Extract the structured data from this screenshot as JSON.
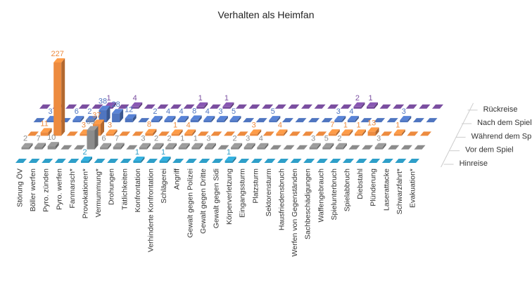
{
  "chart_data": {
    "type": "bar",
    "subtype": "3d-column",
    "title": "Verhalten als Heimfan",
    "categories": [
      "Störung ÖV",
      "Böller werfen",
      "Pyro. zünden",
      "Pyro. werfen",
      "Fanmarsch*",
      "Provokationen*",
      "Vermummung*",
      "Drohungen",
      "Tätlichkeiten",
      "Konfrontation",
      "Verhinderte Konfrontation",
      "Schlägerei",
      "Angriff",
      "Gewalt gegen Polizei",
      "Gewalt gegen Dritte",
      "Gewalt gegen Sidi",
      "Körperverletzung",
      "Eingangssturm",
      "Platzsturm",
      "Sektorensturm",
      "Hausfriedensbruch",
      "Werfen von Gegenständen",
      "Sachbeschädigungen",
      "Waffengebrauch",
      "Spielunterbruch",
      "Spielabbruch",
      "Diebstahl",
      "Plünderung",
      "Laserattacke",
      "Schwarzfahrt*",
      "Evakuation*"
    ],
    "series": [
      {
        "name": "Hinreise",
        "color": "#2e9fc9",
        "values": [
          0,
          0,
          0,
          0,
          0,
          2,
          0,
          0,
          0,
          1,
          0,
          1,
          0,
          0,
          0,
          0,
          1,
          0,
          0,
          0,
          0,
          0,
          0,
          0,
          0,
          0,
          0,
          0,
          0,
          0,
          0
        ]
      },
      {
        "name": "Vor dem Spiel",
        "color": "#8c8c8c",
        "values": [
          2,
          7,
          10,
          0,
          0,
          59,
          6,
          7,
          0,
          3,
          2,
          2,
          1,
          1,
          3,
          0,
          2,
          3,
          4,
          0,
          0,
          0,
          3,
          5,
          2,
          0,
          0,
          3,
          0,
          0,
          0
        ]
      },
      {
        "name": "Während dem Spiel",
        "color": "#ed8b3f",
        "values": [
          0,
          11,
          227,
          0,
          3,
          37,
          3,
          0,
          0,
          8,
          0,
          1,
          4,
          0,
          0,
          0,
          0,
          3,
          0,
          4,
          0,
          0,
          0,
          7,
          1,
          1,
          13,
          0,
          1,
          0,
          0
        ]
      },
      {
        "name": "Nach dem Spiel",
        "color": "#4f75c0",
        "values": [
          0,
          3,
          0,
          6,
          2,
          38,
          28,
          12,
          0,
          2,
          4,
          4,
          8,
          4,
          3,
          5,
          0,
          0,
          5,
          0,
          0,
          0,
          0,
          3,
          4,
          0,
          0,
          0,
          3,
          0,
          0
        ]
      },
      {
        "name": "Rückreise",
        "color": "#7a4ea0",
        "values": [
          0,
          0,
          0,
          0,
          0,
          1,
          0,
          4,
          0,
          0,
          0,
          0,
          1,
          0,
          1,
          0,
          0,
          0,
          0,
          0,
          0,
          0,
          0,
          0,
          2,
          1,
          0,
          0,
          0,
          0,
          0
        ]
      }
    ],
    "data_labels": true,
    "legend": "depth-axis-right",
    "grid": false
  }
}
